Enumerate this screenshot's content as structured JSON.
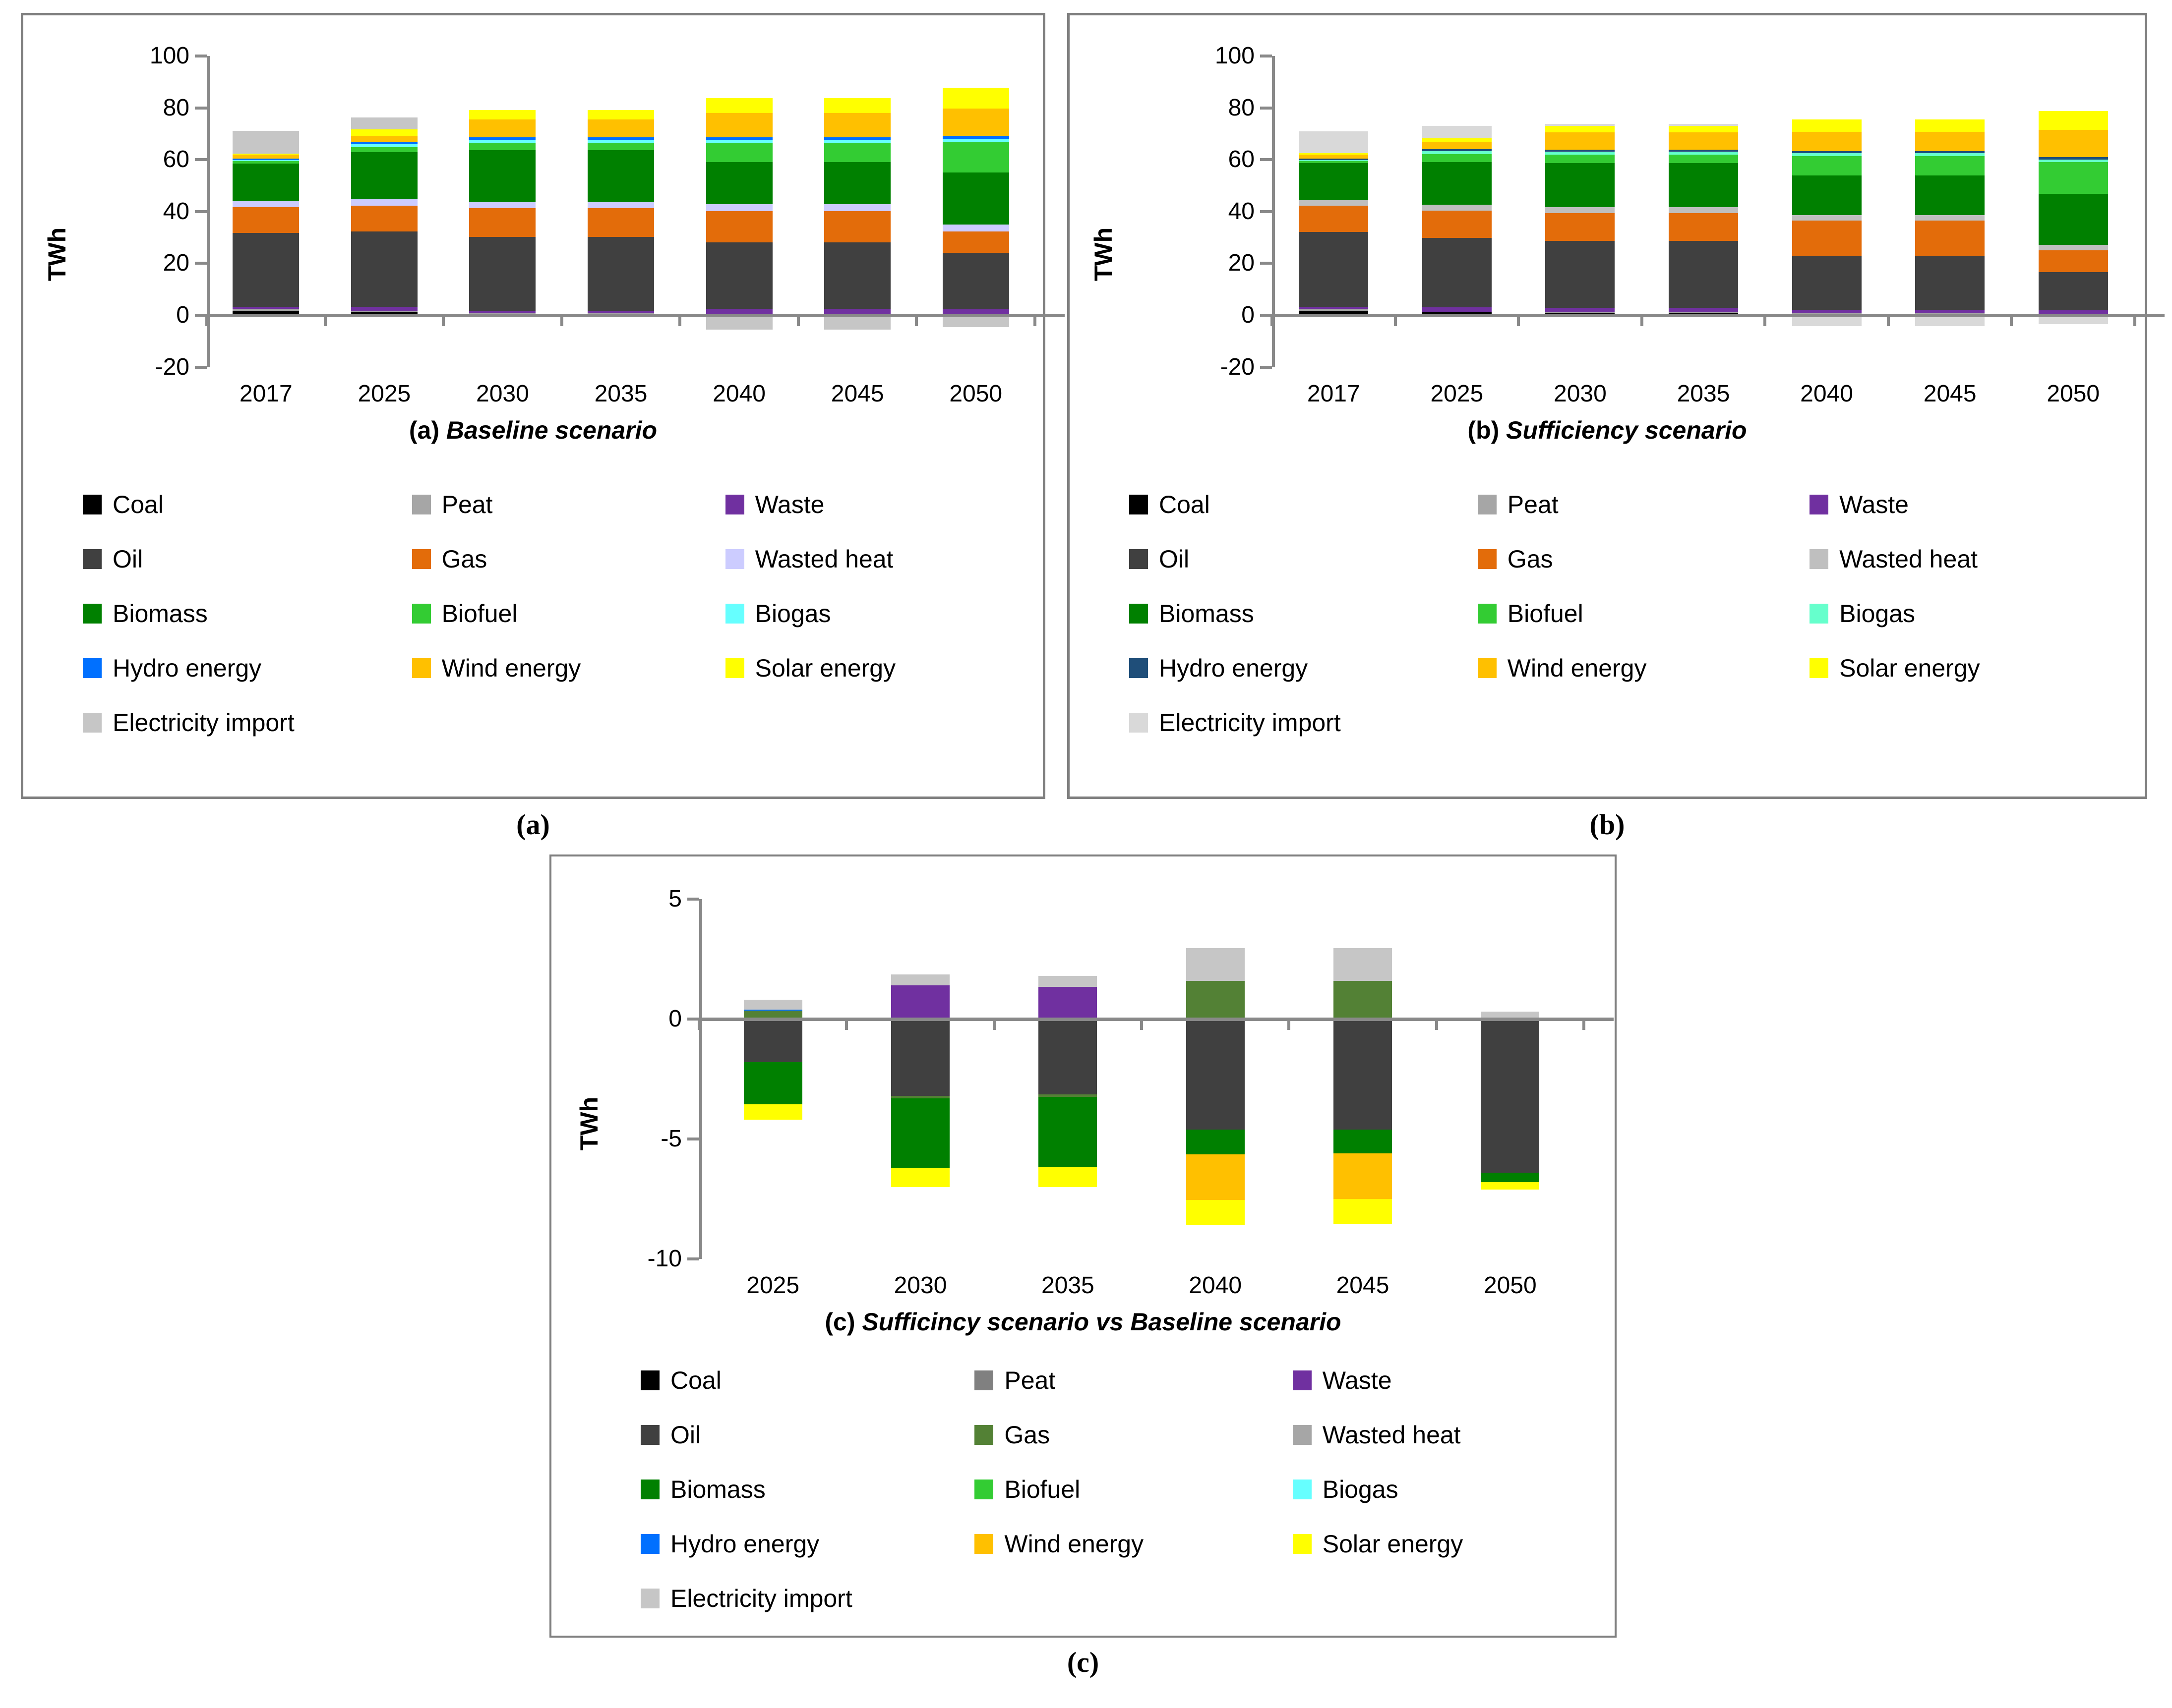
{
  "figure": {
    "markers": {
      "a": "(a)",
      "b": "(b)",
      "c": "(c)"
    },
    "ylabel": "TWh"
  },
  "chart_data": [
    {
      "type": "bar",
      "stacked": true,
      "id": "a",
      "title_prefix": "(a) ",
      "title_italic": "Baseline scenario",
      "ylabel": "TWh",
      "ylim": [
        -20,
        100
      ],
      "yticks": [
        100,
        80,
        60,
        40,
        20,
        0,
        -20
      ],
      "grid": false,
      "legend_position": "bottom",
      "categories": [
        "2017",
        "2025",
        "2030",
        "2035",
        "2040",
        "2045",
        "2050"
      ],
      "series": [
        {
          "name": "Coal",
          "color": "#000000",
          "values": [
            1.5,
            1.2,
            0.6,
            0.6,
            0.4,
            0.4,
            0.3
          ]
        },
        {
          "name": "Peat",
          "color": "#a6a6a6",
          "values": [
            1.0,
            0.3,
            0.3,
            0.3,
            0.2,
            0.2,
            0.1
          ]
        },
        {
          "name": "Waste",
          "color": "#7030a0",
          "values": [
            0.7,
            1.8,
            0.9,
            0.9,
            1.8,
            1.8,
            1.8
          ]
        },
        {
          "name": "Oil",
          "color": "#404040",
          "values": [
            28.5,
            29.0,
            28.5,
            28.5,
            25.8,
            25.8,
            21.8
          ]
        },
        {
          "name": "Gas",
          "color": "#e36c0a",
          "values": [
            10.0,
            10.0,
            11.0,
            11.0,
            12.0,
            12.0,
            8.3
          ]
        },
        {
          "name": "Wasted heat",
          "color": "#ccccff",
          "values": [
            2.3,
            2.6,
            2.3,
            2.3,
            2.7,
            2.7,
            2.7
          ]
        },
        {
          "name": "Biomass",
          "color": "#008000",
          "values": [
            14.5,
            18.0,
            20.0,
            20.0,
            16.2,
            16.2,
            20.0
          ]
        },
        {
          "name": "Biofuel",
          "color": "#33cc33",
          "values": [
            1.0,
            2.0,
            3.0,
            3.0,
            7.5,
            7.5,
            12.0
          ]
        },
        {
          "name": "Biogas",
          "color": "#66ffff",
          "values": [
            0.3,
            1.0,
            1.0,
            1.0,
            1.0,
            1.0,
            1.1
          ]
        },
        {
          "name": "Hydro energy",
          "color": "#0070ff",
          "values": [
            0.7,
            0.8,
            1.0,
            1.0,
            1.1,
            1.1,
            1.2
          ]
        },
        {
          "name": "Wind energy",
          "color": "#ffc000",
          "values": [
            1.5,
            2.5,
            7.0,
            7.0,
            9.3,
            9.3,
            10.5
          ]
        },
        {
          "name": "Solar energy",
          "color": "#ffff00",
          "values": [
            0.3,
            2.5,
            3.5,
            3.5,
            5.8,
            5.8,
            8.0
          ]
        },
        {
          "name": "Electricity import",
          "color": "#c6c6c6",
          "values": [
            8.8,
            4.5,
            0.0,
            0.0,
            -5.5,
            -5.5,
            -4.5
          ]
        }
      ]
    },
    {
      "type": "bar",
      "stacked": true,
      "id": "b",
      "title_prefix": "(b) ",
      "title_italic": "Sufficiency scenario",
      "ylabel": "TWh",
      "ylim": [
        -20,
        100
      ],
      "yticks": [
        100,
        80,
        60,
        40,
        20,
        0,
        -20
      ],
      "grid": false,
      "legend_position": "bottom",
      "categories": [
        "2017",
        "2025",
        "2030",
        "2035",
        "2040",
        "2045",
        "2050"
      ],
      "series": [
        {
          "name": "Coal",
          "color": "#000000",
          "values": [
            1.5,
            1.2,
            0.8,
            0.8,
            0.5,
            0.5,
            0.4
          ]
        },
        {
          "name": "Peat",
          "color": "#a6a6a6",
          "values": [
            1.0,
            0.2,
            0.3,
            0.3,
            0.2,
            0.2,
            0.1
          ]
        },
        {
          "name": "Waste",
          "color": "#7030a0",
          "values": [
            0.7,
            1.7,
            1.8,
            1.8,
            1.4,
            1.4,
            1.4
          ]
        },
        {
          "name": "Oil",
          "color": "#404040",
          "values": [
            29.0,
            26.8,
            25.7,
            25.7,
            20.6,
            20.6,
            14.8
          ]
        },
        {
          "name": "Gas",
          "color": "#e36c0a",
          "values": [
            10.0,
            10.5,
            10.7,
            10.7,
            13.8,
            13.8,
            8.3
          ]
        },
        {
          "name": "Wasted heat",
          "color": "#bfbfbf",
          "values": [
            2.1,
            2.2,
            2.4,
            2.4,
            2.1,
            2.1,
            2.2
          ]
        },
        {
          "name": "Biomass",
          "color": "#008000",
          "values": [
            14.4,
            16.5,
            17.0,
            17.0,
            15.3,
            15.3,
            19.7
          ]
        },
        {
          "name": "Biofuel",
          "color": "#33cc33",
          "values": [
            0.7,
            3.0,
            3.3,
            3.3,
            7.5,
            7.5,
            12.1
          ]
        },
        {
          "name": "Biogas",
          "color": "#66ffcc",
          "values": [
            0.5,
            1.1,
            1.0,
            1.0,
            1.1,
            1.1,
            1.1
          ]
        },
        {
          "name": "Hydro energy",
          "color": "#1f4e79",
          "values": [
            0.5,
            0.8,
            0.8,
            0.8,
            0.8,
            0.8,
            0.9
          ]
        },
        {
          "name": "Wind energy",
          "color": "#ffc000",
          "values": [
            1.6,
            2.7,
            6.7,
            6.7,
            7.5,
            7.5,
            10.6
          ]
        },
        {
          "name": "Solar energy",
          "color": "#ffff00",
          "values": [
            0.5,
            1.6,
            2.5,
            2.5,
            4.7,
            4.7,
            7.2
          ]
        },
        {
          "name": "Electricity import",
          "color": "#d9d9d9",
          "values": [
            8.4,
            4.8,
            0.8,
            0.8,
            -4.3,
            -4.3,
            -3.4
          ]
        }
      ]
    },
    {
      "type": "bar",
      "stacked": true,
      "id": "c",
      "title_prefix": "(c) ",
      "title_italic": "Sufficincy scenario vs Baseline scenario",
      "ylabel": "TWh",
      "ylim": [
        -10,
        5
      ],
      "yticks": [
        5,
        0,
        -5,
        -10
      ],
      "grid": false,
      "legend_position": "bottom",
      "categories": [
        "2025",
        "2030",
        "2035",
        "2040",
        "2045",
        "2050"
      ],
      "series": [
        {
          "name": "Coal",
          "color": "#000000",
          "values": [
            0,
            0,
            0,
            0,
            0,
            0
          ]
        },
        {
          "name": "Peat",
          "color": "#808080",
          "values": [
            0,
            0,
            0,
            0,
            0,
            0
          ]
        },
        {
          "name": "Waste",
          "color": "#7030a0",
          "values": [
            0,
            1.4,
            1.35,
            0,
            0,
            0
          ]
        },
        {
          "name": "Oil",
          "color": "#404040",
          "values": [
            -1.8,
            -3.2,
            -3.15,
            -4.6,
            -4.6,
            -6.4
          ]
        },
        {
          "name": "Gas",
          "color": "#538135",
          "values": [
            0.35,
            -0.1,
            -0.1,
            1.6,
            1.6,
            0
          ]
        },
        {
          "name": "Wasted heat",
          "color": "#a6a6a6",
          "values": [
            0,
            0,
            0,
            0,
            0,
            0
          ]
        },
        {
          "name": "Biomass",
          "color": "#008000",
          "values": [
            -1.75,
            -2.9,
            -2.9,
            -1.05,
            -1.0,
            -0.4
          ]
        },
        {
          "name": "Biofuel",
          "color": "#33cc33",
          "values": [
            0,
            0,
            0,
            0,
            0,
            0
          ]
        },
        {
          "name": "Biogas",
          "color": "#66ffff",
          "values": [
            0,
            0,
            0,
            0,
            0,
            0
          ]
        },
        {
          "name": "Hydro energy",
          "color": "#0070ff",
          "values": [
            0.05,
            0,
            0,
            0,
            0,
            0
          ]
        },
        {
          "name": "Wind energy",
          "color": "#ffc000",
          "values": [
            0,
            0,
            0,
            -1.9,
            -1.9,
            0
          ]
        },
        {
          "name": "Solar energy",
          "color": "#ffff00",
          "values": [
            -0.65,
            -0.8,
            -0.85,
            -1.05,
            -1.05,
            -0.3
          ]
        },
        {
          "name": "Electricity import",
          "color": "#c6c6c6",
          "values": [
            0.4,
            0.45,
            0.45,
            1.35,
            1.35,
            0.3
          ]
        }
      ]
    }
  ]
}
